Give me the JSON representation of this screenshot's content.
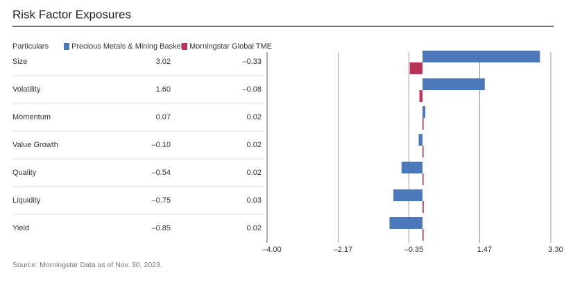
{
  "chart_data": {
    "type": "bar",
    "orientation": "horizontal",
    "title": "Risk Factor Exposures",
    "table_header": "Particulars",
    "categories": [
      "Size",
      "Volatility",
      "Momentum",
      "Value Growth",
      "Quality",
      "Liquidity",
      "Yield"
    ],
    "series": [
      {
        "name": "Precious Metals & Mining Basket",
        "color": "#4a78b8",
        "values": [
          3.02,
          1.6,
          0.07,
          -0.1,
          -0.54,
          -0.75,
          -0.85
        ],
        "value_labels": [
          "3.02",
          "1.60",
          "0.07",
          "–0.10",
          "–0.54",
          "–0.75",
          "–0.85"
        ]
      },
      {
        "name": "Morningstar Global TME",
        "color": "#b8325a",
        "values": [
          -0.33,
          -0.08,
          0.02,
          0.02,
          0.02,
          0.03,
          0.02
        ],
        "value_labels": [
          "–0.33",
          "–0.08",
          "0.02",
          "0.02",
          "0.02",
          "0.03",
          "0.02"
        ]
      }
    ],
    "xlim": [
      -4.0,
      3.3
    ],
    "xticks": [
      {
        "value": -4.0,
        "label": "–4.00"
      },
      {
        "value": -2.17,
        "label": "–2.17"
      },
      {
        "value": -0.35,
        "label": "–0.35"
      },
      {
        "value": 1.47,
        "label": "1.47"
      },
      {
        "value": 3.3,
        "label": "3.30"
      }
    ],
    "grid": true,
    "source": "Source: Morningstar Data as of Nov. 30, 2023."
  }
}
